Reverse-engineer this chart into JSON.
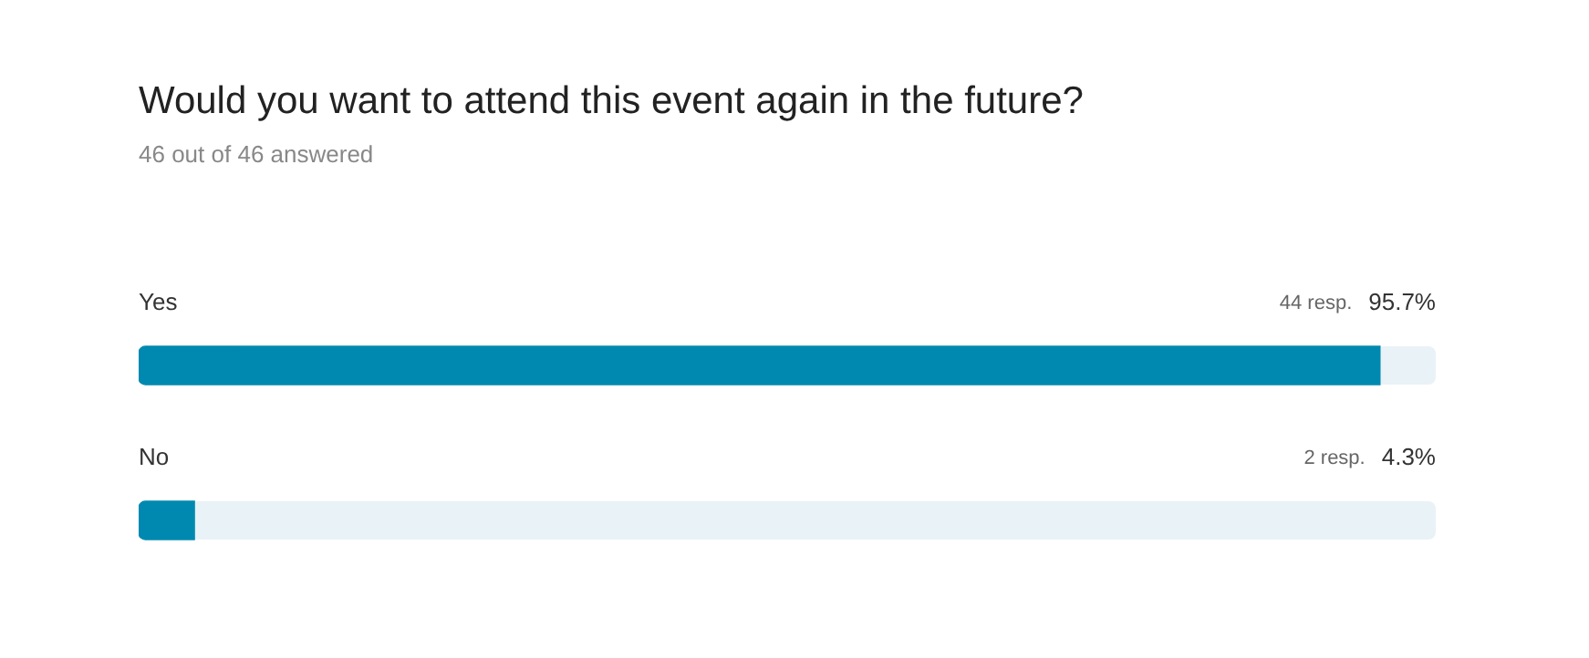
{
  "chart_data": {
    "type": "bar",
    "orientation": "horizontal",
    "title": "Would you want to attend this event again in the future?",
    "subtitle": "46 out of 46 answered",
    "categories": [
      "Yes",
      "No"
    ],
    "values": [
      95.7,
      4.3
    ],
    "value_labels": [
      "95.7%",
      "4.3%"
    ],
    "color": "#0089b0",
    "annotations": [
      "44 resp.",
      "2 resp."
    ],
    "legend": false
  }
}
